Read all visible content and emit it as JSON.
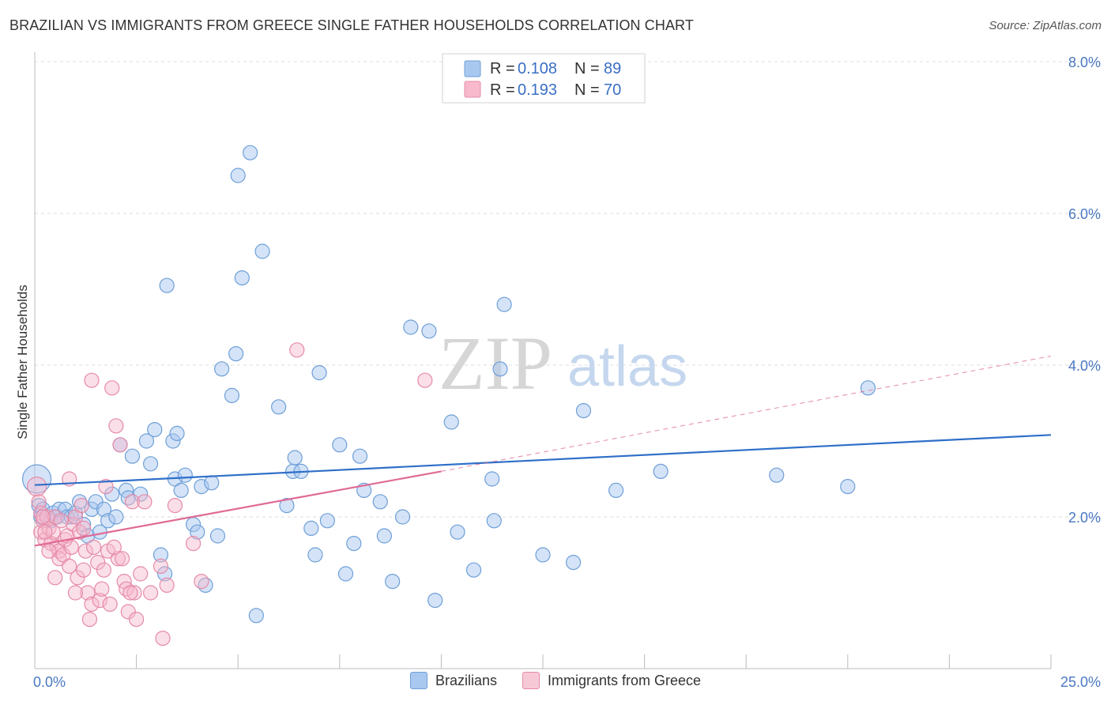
{
  "header": {
    "title": "BRAZILIAN VS IMMIGRANTS FROM GREECE SINGLE FATHER HOUSEHOLDS CORRELATION CHART",
    "source": "Source: ZipAtlas.com"
  },
  "watermark": {
    "zip": "ZIP",
    "atlas": "atlas"
  },
  "legend_top": [
    {
      "r_label": "R =",
      "r_value": "0.108",
      "n_label": "N =",
      "n_value": "89"
    },
    {
      "r_label": "R =",
      "r_value": "0.193",
      "n_label": "N =",
      "n_value": "70"
    }
  ],
  "legend_bottom": [
    {
      "label": "Brazilians"
    },
    {
      "label": "Immigrants from Greece"
    }
  ],
  "colors": {
    "blue_fill": "#a9c8f0",
    "blue_stroke": "#6e9fd8",
    "blue_line": "#2f6fc9",
    "pink_fill": "#f7b9cb",
    "pink_stroke": "#e58aa8",
    "pink_line": "#e06a96",
    "tick_text": "#4a78c2",
    "grid": "#dddddd"
  },
  "chart_data": {
    "type": "scatter",
    "title": "BRAZILIAN VS IMMIGRANTS FROM GREECE SINGLE FATHER HOUSEHOLDS CORRELATION CHART",
    "xlabel": "",
    "ylabel": "Single Father Households",
    "xlim": [
      0,
      25
    ],
    "ylim": [
      0,
      8.4
    ],
    "x_tick_labels": [
      "0.0%",
      "25.0%"
    ],
    "y_ticks": [
      2,
      4,
      6,
      8
    ],
    "y_tick_labels": [
      "2.0%",
      "4.0%",
      "6.0%",
      "8.0%"
    ],
    "series": [
      {
        "name": "Brazilians",
        "R": 0.108,
        "N": 89,
        "trend": {
          "x0": 0,
          "y0": 2.42,
          "x1": 25,
          "y1": 3.08
        },
        "points": [
          [
            0.05,
            2.5
          ],
          [
            0.1,
            2.15
          ],
          [
            0.15,
            2.0
          ],
          [
            0.2,
            2.1
          ],
          [
            0.3,
            2.0
          ],
          [
            0.4,
            1.95
          ],
          [
            0.45,
            2.05
          ],
          [
            0.55,
            2.0
          ],
          [
            0.6,
            2.1
          ],
          [
            0.75,
            2.1
          ],
          [
            0.8,
            2.0
          ],
          [
            0.9,
            2.0
          ],
          [
            1.0,
            2.05
          ],
          [
            1.1,
            2.2
          ],
          [
            1.2,
            1.9
          ],
          [
            1.3,
            1.75
          ],
          [
            1.4,
            2.1
          ],
          [
            1.5,
            2.2
          ],
          [
            1.6,
            1.8
          ],
          [
            1.7,
            2.1
          ],
          [
            1.8,
            1.95
          ],
          [
            1.9,
            2.3
          ],
          [
            2.0,
            2.0
          ],
          [
            2.1,
            2.95
          ],
          [
            2.25,
            2.35
          ],
          [
            2.3,
            2.25
          ],
          [
            2.4,
            2.8
          ],
          [
            2.6,
            2.3
          ],
          [
            2.75,
            3.0
          ],
          [
            2.85,
            2.7
          ],
          [
            2.95,
            3.15
          ],
          [
            3.1,
            1.5
          ],
          [
            3.2,
            1.25
          ],
          [
            3.4,
            3.0
          ],
          [
            3.45,
            2.5
          ],
          [
            3.5,
            3.1
          ],
          [
            3.6,
            2.35
          ],
          [
            3.7,
            2.55
          ],
          [
            3.9,
            1.9
          ],
          [
            4.0,
            1.8
          ],
          [
            4.1,
            2.4
          ],
          [
            4.2,
            1.1
          ],
          [
            4.35,
            2.45
          ],
          [
            4.5,
            1.75
          ],
          [
            4.6,
            3.95
          ],
          [
            4.85,
            3.6
          ],
          [
            4.95,
            4.15
          ],
          [
            5.1,
            5.15
          ],
          [
            5.3,
            6.8
          ],
          [
            5.45,
            0.7
          ],
          [
            5.6,
            5.5
          ],
          [
            5.0,
            6.5
          ],
          [
            3.25,
            5.05
          ],
          [
            6.0,
            3.45
          ],
          [
            6.2,
            2.15
          ],
          [
            6.35,
            2.6
          ],
          [
            6.4,
            2.78
          ],
          [
            6.55,
            2.6
          ],
          [
            6.8,
            1.85
          ],
          [
            6.9,
            1.5
          ],
          [
            7.0,
            3.9
          ],
          [
            7.2,
            1.95
          ],
          [
            7.5,
            2.95
          ],
          [
            7.65,
            1.25
          ],
          [
            7.85,
            1.65
          ],
          [
            8.0,
            2.8
          ],
          [
            8.1,
            2.35
          ],
          [
            8.5,
            2.2
          ],
          [
            8.6,
            1.75
          ],
          [
            8.8,
            1.15
          ],
          [
            9.05,
            2.0
          ],
          [
            9.25,
            4.5
          ],
          [
            9.7,
            4.45
          ],
          [
            9.85,
            0.9
          ],
          [
            10.25,
            3.25
          ],
          [
            10.4,
            1.8
          ],
          [
            10.8,
            1.3
          ],
          [
            11.25,
            2.5
          ],
          [
            11.3,
            1.95
          ],
          [
            11.45,
            3.95
          ],
          [
            11.55,
            4.8
          ],
          [
            12.5,
            1.5
          ],
          [
            13.25,
            1.4
          ],
          [
            13.5,
            3.4
          ],
          [
            14.3,
            2.35
          ],
          [
            15.4,
            2.6
          ],
          [
            18.25,
            2.55
          ],
          [
            20.5,
            3.7
          ],
          [
            20.0,
            2.4
          ]
        ]
      },
      {
        "name": "Immigrants from Greece",
        "R": 0.193,
        "N": 70,
        "trend": {
          "x0": 0,
          "y0": 1.62,
          "x1": 10,
          "y1": 2.6
        },
        "trend_dashed": {
          "x0": 10,
          "y0": 2.6,
          "x1": 25,
          "y1": 4.12
        },
        "points": [
          [
            0.05,
            2.4
          ],
          [
            0.1,
            2.2
          ],
          [
            0.15,
            2.05
          ],
          [
            0.15,
            1.8
          ],
          [
            0.2,
            1.95
          ],
          [
            0.25,
            1.7
          ],
          [
            0.3,
            2.0
          ],
          [
            0.35,
            1.85
          ],
          [
            0.4,
            1.65
          ],
          [
            0.45,
            1.8
          ],
          [
            0.5,
            2.0
          ],
          [
            0.55,
            1.6
          ],
          [
            0.6,
            1.55
          ],
          [
            0.6,
            1.45
          ],
          [
            0.7,
            1.5
          ],
          [
            0.75,
            1.7
          ],
          [
            0.8,
            1.75
          ],
          [
            0.85,
            1.35
          ],
          [
            0.9,
            1.6
          ],
          [
            0.95,
            1.9
          ],
          [
            1.0,
            2.0
          ],
          [
            1.05,
            1.2
          ],
          [
            1.1,
            1.8
          ],
          [
            1.15,
            2.15
          ],
          [
            1.2,
            1.85
          ],
          [
            1.25,
            1.55
          ],
          [
            1.3,
            1.0
          ],
          [
            1.35,
            0.65
          ],
          [
            1.4,
            0.85
          ],
          [
            1.45,
            1.6
          ],
          [
            1.55,
            1.4
          ],
          [
            1.6,
            0.9
          ],
          [
            1.7,
            1.3
          ],
          [
            1.75,
            2.4
          ],
          [
            1.8,
            1.55
          ],
          [
            1.85,
            0.85
          ],
          [
            1.9,
            3.7
          ],
          [
            2.0,
            3.2
          ],
          [
            2.05,
            1.45
          ],
          [
            2.1,
            2.95
          ],
          [
            2.2,
            1.15
          ],
          [
            2.25,
            1.05
          ],
          [
            2.3,
            0.75
          ],
          [
            2.4,
            2.2
          ],
          [
            2.45,
            1.0
          ],
          [
            2.5,
            0.65
          ],
          [
            2.6,
            1.25
          ],
          [
            2.7,
            2.2
          ],
          [
            2.85,
            1.0
          ],
          [
            3.1,
            1.35
          ],
          [
            3.15,
            0.4
          ],
          [
            3.25,
            1.1
          ],
          [
            3.45,
            2.15
          ],
          [
            3.9,
            1.65
          ],
          [
            4.1,
            1.15
          ],
          [
            6.45,
            4.2
          ],
          [
            9.6,
            3.8
          ],
          [
            0.25,
            1.8
          ],
          [
            0.35,
            1.55
          ],
          [
            0.5,
            1.2
          ],
          [
            0.65,
            1.95
          ],
          [
            0.85,
            2.5
          ],
          [
            1.0,
            1.0
          ],
          [
            1.2,
            1.3
          ],
          [
            1.4,
            3.8
          ],
          [
            1.65,
            1.05
          ],
          [
            1.95,
            1.6
          ],
          [
            2.15,
            1.45
          ],
          [
            2.35,
            1.0
          ],
          [
            0.2,
            2.0
          ]
        ]
      }
    ]
  }
}
